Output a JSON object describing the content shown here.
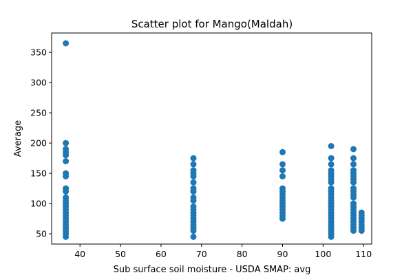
{
  "chart_data": {
    "type": "scatter",
    "title": "Scatter plot for Mango(Maldah)",
    "xlabel": "Sub surface soil moisture - USDA SMAP: avg",
    "ylabel": "Average",
    "xlim": [
      33,
      112
    ],
    "ylim": [
      33,
      382
    ],
    "xticks": [
      40,
      50,
      60,
      70,
      80,
      90,
      100,
      110
    ],
    "yticks": [
      50,
      100,
      150,
      200,
      250,
      300,
      350
    ],
    "grid": false,
    "marker_color": "#1f77b4",
    "points": [
      [
        36.5,
        365
      ],
      [
        36.5,
        200
      ],
      [
        36.5,
        190
      ],
      [
        36.5,
        185
      ],
      [
        36.5,
        180
      ],
      [
        36.5,
        170
      ],
      [
        36.5,
        150
      ],
      [
        36.5,
        145
      ],
      [
        36.5,
        125
      ],
      [
        36.5,
        120
      ],
      [
        36.5,
        110
      ],
      [
        36.5,
        105
      ],
      [
        36.5,
        100
      ],
      [
        36.5,
        95
      ],
      [
        36.5,
        90
      ],
      [
        36.5,
        85
      ],
      [
        36.5,
        80
      ],
      [
        36.5,
        75
      ],
      [
        36.5,
        70
      ],
      [
        36.5,
        65
      ],
      [
        36.5,
        60
      ],
      [
        36.5,
        55
      ],
      [
        36.5,
        50
      ],
      [
        36.5,
        45
      ],
      [
        68,
        175
      ],
      [
        68,
        165
      ],
      [
        68,
        155
      ],
      [
        68,
        150
      ],
      [
        68,
        145
      ],
      [
        68,
        135
      ],
      [
        68,
        125
      ],
      [
        68,
        120
      ],
      [
        68,
        110
      ],
      [
        68,
        105
      ],
      [
        68,
        95
      ],
      [
        68,
        90
      ],
      [
        68,
        85
      ],
      [
        68,
        80
      ],
      [
        68,
        75
      ],
      [
        68,
        70
      ],
      [
        68,
        65
      ],
      [
        68,
        60
      ],
      [
        68,
        55
      ],
      [
        68,
        45
      ],
      [
        90,
        185
      ],
      [
        90,
        165
      ],
      [
        90,
        155
      ],
      [
        90,
        145
      ],
      [
        90,
        125
      ],
      [
        90,
        120
      ],
      [
        90,
        115
      ],
      [
        90,
        110
      ],
      [
        90,
        105
      ],
      [
        90,
        100
      ],
      [
        90,
        95
      ],
      [
        90,
        90
      ],
      [
        90,
        85
      ],
      [
        90,
        80
      ],
      [
        90,
        75
      ],
      [
        102,
        195
      ],
      [
        102,
        175
      ],
      [
        102,
        165
      ],
      [
        102,
        155
      ],
      [
        102,
        150
      ],
      [
        102,
        145
      ],
      [
        102,
        140
      ],
      [
        102,
        135
      ],
      [
        102,
        125
      ],
      [
        102,
        120
      ],
      [
        102,
        115
      ],
      [
        102,
        110
      ],
      [
        102,
        105
      ],
      [
        102,
        100
      ],
      [
        102,
        95
      ],
      [
        102,
        90
      ],
      [
        102,
        85
      ],
      [
        102,
        80
      ],
      [
        102,
        75
      ],
      [
        102,
        70
      ],
      [
        102,
        65
      ],
      [
        102,
        60
      ],
      [
        102,
        55
      ],
      [
        102,
        50
      ],
      [
        102,
        45
      ],
      [
        107.5,
        190
      ],
      [
        107.5,
        175
      ],
      [
        107.5,
        165
      ],
      [
        107.5,
        155
      ],
      [
        107.5,
        150
      ],
      [
        107.5,
        145
      ],
      [
        107.5,
        140
      ],
      [
        107.5,
        135
      ],
      [
        107.5,
        125
      ],
      [
        107.5,
        120
      ],
      [
        107.5,
        115
      ],
      [
        107.5,
        110
      ],
      [
        107.5,
        100
      ],
      [
        107.5,
        95
      ],
      [
        107.5,
        90
      ],
      [
        107.5,
        85
      ],
      [
        107.5,
        80
      ],
      [
        107.5,
        75
      ],
      [
        107.5,
        70
      ],
      [
        107.5,
        65
      ],
      [
        107.5,
        60
      ],
      [
        107.5,
        55
      ],
      [
        109.5,
        85
      ],
      [
        109.5,
        80
      ],
      [
        109.5,
        75
      ],
      [
        109.5,
        70
      ],
      [
        109.5,
        65
      ],
      [
        109.5,
        60
      ],
      [
        109.5,
        55
      ]
    ]
  }
}
